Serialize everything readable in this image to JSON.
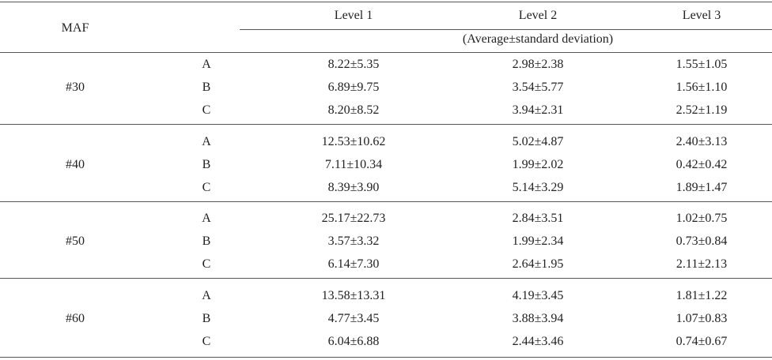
{
  "header": {
    "maf": "MAF",
    "levels": [
      "Level 1",
      "Level 2",
      "Level 3"
    ],
    "subheader": "(Average±standard deviation)"
  },
  "groups": [
    {
      "name": "#30",
      "rows": [
        {
          "label": "A",
          "cells": [
            "8.22±5.35",
            "2.98±2.38",
            "1.55±1.05"
          ]
        },
        {
          "label": "B",
          "cells": [
            "6.89±9.75",
            "3.54±5.77",
            "1.56±1.10"
          ]
        },
        {
          "label": "C",
          "cells": [
            "8.20±8.52",
            "3.94±2.31",
            "2.52±1.19"
          ]
        }
      ]
    },
    {
      "name": "#40",
      "rows": [
        {
          "label": "A",
          "cells": [
            "12.53±10.62",
            "5.02±4.87",
            "2.40±3.13"
          ]
        },
        {
          "label": "B",
          "cells": [
            "7.11±10.34",
            "1.99±2.02",
            "0.42±0.42"
          ]
        },
        {
          "label": "C",
          "cells": [
            "8.39±3.90",
            "5.14±3.29",
            "1.89±1.47"
          ]
        }
      ]
    },
    {
      "name": "#50",
      "rows": [
        {
          "label": "A",
          "cells": [
            "25.17±22.73",
            "2.84±3.51",
            "1.02±0.75"
          ]
        },
        {
          "label": "B",
          "cells": [
            "3.57±3.32",
            "1.99±2.34",
            "0.73±0.84"
          ]
        },
        {
          "label": "C",
          "cells": [
            "6.14±7.30",
            "2.64±1.95",
            "2.11±2.13"
          ]
        }
      ]
    },
    {
      "name": "#60",
      "rows": [
        {
          "label": "A",
          "cells": [
            "13.58±13.31",
            "4.19±3.45",
            "1.81±1.22"
          ]
        },
        {
          "label": "B",
          "cells": [
            "4.77±3.45",
            "3.88±3.94",
            "1.07±0.83"
          ]
        },
        {
          "label": "C",
          "cells": [
            "6.04±6.88",
            "2.44±3.46",
            "0.74±0.67"
          ]
        }
      ]
    }
  ]
}
